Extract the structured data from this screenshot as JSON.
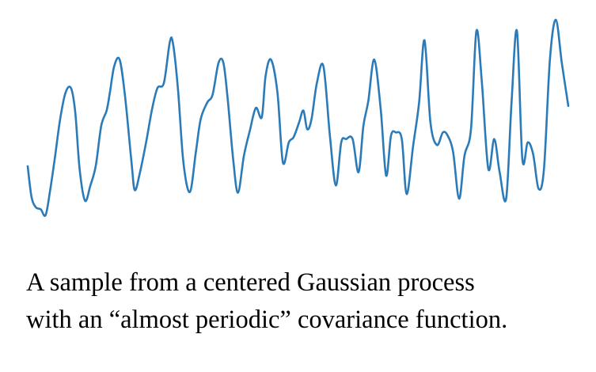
{
  "caption": {
    "line1": "A sample from a centered Gaussian process",
    "line2": "with an “almost periodic” covariance function."
  },
  "chart_data": {
    "type": "line",
    "title": "",
    "xlabel": "",
    "ylabel": "",
    "grid": false,
    "legend": "none",
    "color": "#2b7bb9",
    "xlim": [
      0,
      100
    ],
    "ylim": [
      -1.55,
      1.95
    ],
    "series": [
      {
        "x": [
          0.0,
          0.7,
          1.5,
          2.4,
          3.3,
          4.1,
          5.0,
          6.0,
          7.0,
          8.0,
          8.8,
          9.6,
          10.6,
          11.6,
          12.6,
          13.6,
          14.6,
          15.2,
          16.0,
          17.0,
          18.0,
          19.2,
          19.8,
          20.7,
          21.9,
          23.0,
          24.0,
          25.2,
          26.3,
          26.9,
          27.8,
          28.8,
          30.0,
          31.1,
          32.0,
          33.2,
          34.2,
          35.3,
          36.2,
          37.0,
          38.0,
          38.9,
          40.0,
          41.1,
          42.2,
          43.3,
          44.0,
          45.0,
          46.2,
          47.2,
          48.3,
          49.2,
          50.2,
          51.0,
          51.7,
          52.5,
          53.5,
          54.7,
          55.9,
          57.0,
          58.0,
          58.9,
          60.1,
          61.2,
          62.1,
          63.0,
          64.1,
          65.3,
          66.3,
          67.2,
          68.1,
          69.2,
          70.1,
          71.3,
          72.4,
          73.4,
          74.5,
          75.7,
          76.8,
          77.7,
          78.7,
          79.8,
          80.8,
          82.0,
          83.0,
          84.0,
          85.2,
          86.3,
          87.3,
          88.5,
          89.5,
          90.5,
          91.5,
          92.5,
          93.5,
          94.5,
          95.5,
          96.6,
          97.7,
          98.8,
          100.0
        ],
        "y": [
          -0.26,
          -0.72,
          -0.88,
          -0.91,
          -1.0,
          -0.65,
          -0.15,
          0.45,
          0.85,
          0.92,
          0.55,
          -0.3,
          -0.78,
          -0.55,
          -0.25,
          0.35,
          0.58,
          0.85,
          1.25,
          1.35,
          0.8,
          -0.2,
          -0.62,
          -0.38,
          0.1,
          0.6,
          0.92,
          1.0,
          1.62,
          1.58,
          0.9,
          -0.2,
          -0.65,
          -0.05,
          0.45,
          0.7,
          0.82,
          1.3,
          1.3,
          0.75,
          -0.15,
          -0.66,
          -0.1,
          0.28,
          0.62,
          0.48,
          1.1,
          1.35,
          0.85,
          -0.2,
          0.1,
          0.18,
          0.4,
          0.58,
          0.3,
          0.45,
          1.0,
          1.25,
          0.2,
          -0.55,
          0.1,
          0.15,
          0.15,
          -0.35,
          0.35,
          0.72,
          1.35,
          0.6,
          -0.4,
          0.2,
          0.25,
          0.15,
          -0.68,
          0.05,
          0.7,
          1.64,
          0.4,
          0.06,
          0.25,
          0.2,
          -0.05,
          -0.75,
          -0.1,
          0.3,
          1.78,
          1.02,
          -0.3,
          0.15,
          -0.35,
          -0.75,
          0.7,
          1.78,
          -0.15,
          0.1,
          -0.08,
          -0.6,
          -0.3,
          1.35,
          1.95,
          1.3,
          0.65
        ]
      }
    ]
  }
}
